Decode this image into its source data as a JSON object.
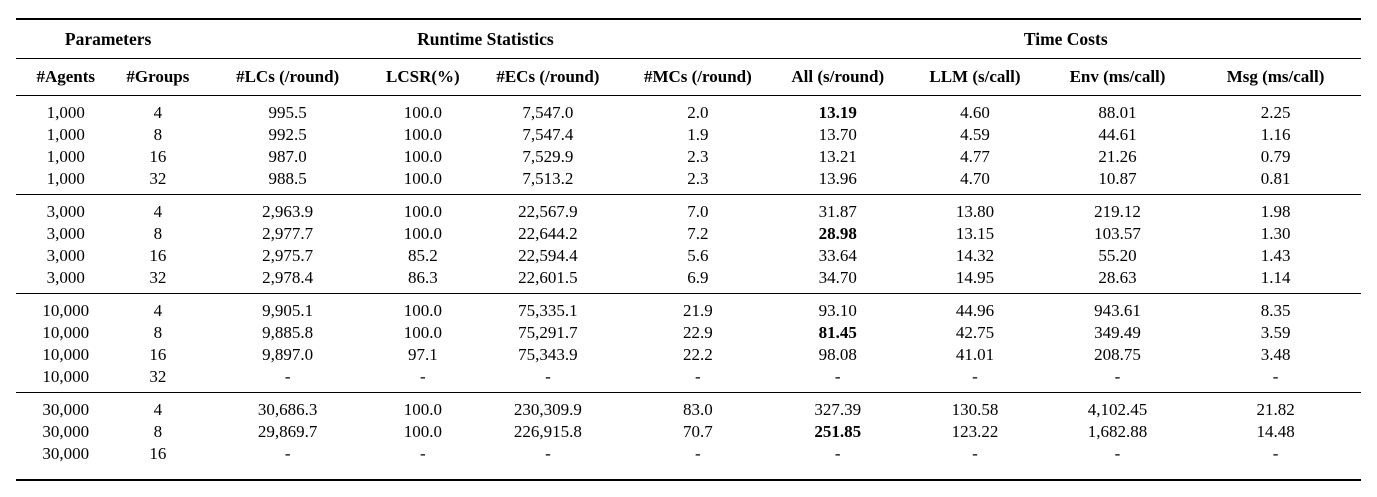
{
  "table": {
    "group_headers": [
      {
        "label": "Parameters",
        "colspan": 2
      },
      {
        "label": "Runtime Statistics",
        "colspan": 4
      },
      {
        "label": "Time Costs",
        "colspan": 4
      }
    ],
    "columns": [
      "#Agents",
      "#Groups",
      "#LCs (/round)",
      "LCSR(%)",
      "#ECs (/round)",
      "#MCs (/round)",
      "All (s/round)",
      "LLM (s/call)",
      "Env (ms/call)",
      "Msg (ms/call)"
    ],
    "groups": [
      {
        "agents": "1000",
        "rows": [
          [
            "1,000",
            "4",
            "995.5",
            "100.0",
            "7,547.0",
            "2.0",
            {
              "text": "13.19",
              "bold": true
            },
            "4.60",
            "88.01",
            "2.25"
          ],
          [
            "1,000",
            "8",
            "992.5",
            "100.0",
            "7,547.4",
            "1.9",
            "13.70",
            "4.59",
            "44.61",
            "1.16"
          ],
          [
            "1,000",
            "16",
            "987.0",
            "100.0",
            "7,529.9",
            "2.3",
            "13.21",
            "4.77",
            "21.26",
            "0.79"
          ],
          [
            "1,000",
            "32",
            "988.5",
            "100.0",
            "7,513.2",
            "2.3",
            "13.96",
            "4.70",
            "10.87",
            "0.81"
          ]
        ]
      },
      {
        "agents": "3000",
        "rows": [
          [
            "3,000",
            "4",
            "2,963.9",
            "100.0",
            "22,567.9",
            "7.0",
            "31.87",
            "13.80",
            "219.12",
            "1.98"
          ],
          [
            "3,000",
            "8",
            "2,977.7",
            "100.0",
            "22,644.2",
            "7.2",
            {
              "text": "28.98",
              "bold": true
            },
            "13.15",
            "103.57",
            "1.30"
          ],
          [
            "3,000",
            "16",
            "2,975.7",
            "85.2",
            "22,594.4",
            "5.6",
            "33.64",
            "14.32",
            "55.20",
            "1.43"
          ],
          [
            "3,000",
            "32",
            "2,978.4",
            "86.3",
            "22,601.5",
            "6.9",
            "34.70",
            "14.95",
            "28.63",
            "1.14"
          ]
        ]
      },
      {
        "agents": "10000",
        "rows": [
          [
            "10,000",
            "4",
            "9,905.1",
            "100.0",
            "75,335.1",
            "21.9",
            "93.10",
            "44.96",
            "943.61",
            "8.35"
          ],
          [
            "10,000",
            "8",
            "9,885.8",
            "100.0",
            "75,291.7",
            "22.9",
            {
              "text": "81.45",
              "bold": true
            },
            "42.75",
            "349.49",
            "3.59"
          ],
          [
            "10,000",
            "16",
            "9,897.0",
            "97.1",
            "75,343.9",
            "22.2",
            "98.08",
            "41.01",
            "208.75",
            "3.48"
          ],
          [
            "10,000",
            "32",
            "-",
            "-",
            "-",
            "-",
            "-",
            "-",
            "-",
            "-"
          ]
        ]
      },
      {
        "agents": "30000",
        "rows": [
          [
            "30,000",
            "4",
            "30,686.3",
            "100.0",
            "230,309.9",
            "83.0",
            "327.39",
            "130.58",
            "4,102.45",
            "21.82"
          ],
          [
            "30,000",
            "8",
            "29,869.7",
            "100.0",
            "226,915.8",
            "70.7",
            {
              "text": "251.85",
              "bold": true
            },
            "123.22",
            "1,682.88",
            "14.48"
          ],
          [
            "30,000",
            "16",
            "-",
            "-",
            "-",
            "-",
            "-",
            "-",
            "-",
            "-"
          ]
        ]
      }
    ]
  }
}
